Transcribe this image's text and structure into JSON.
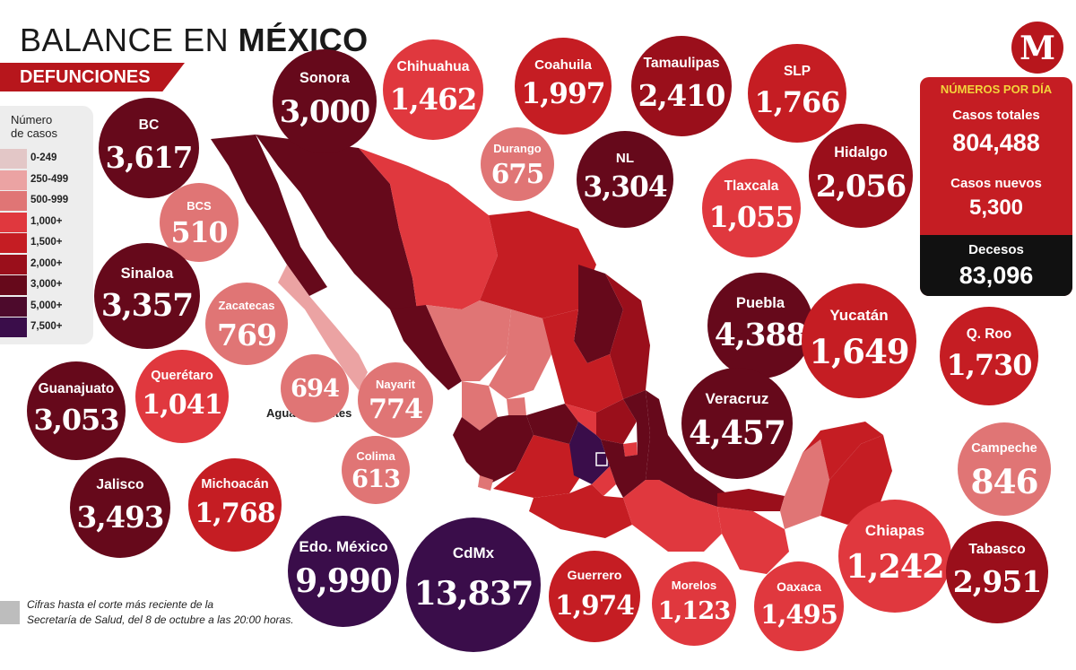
{
  "header": {
    "title_light": "BALANCE EN",
    "title_bold": "MÉXICO",
    "subtitle": "DEFUNCIONES"
  },
  "logo": {
    "letter": "M"
  },
  "legend": {
    "title_line1": "Número",
    "title_line2": "de casos",
    "items": [
      {
        "label": "0-249",
        "color": "#e3c7c7"
      },
      {
        "label": "250-499",
        "color": "#eba3a3"
      },
      {
        "label": "500-999",
        "color": "#e07575"
      },
      {
        "label": "1,000+",
        "color": "#e0383e"
      },
      {
        "label": "1,500+",
        "color": "#c51d23"
      },
      {
        "label": "2,000+",
        "color": "#9a0f1b"
      },
      {
        "label": "3,000+",
        "color": "#66091b"
      },
      {
        "label": "5,000+",
        "color": "#4d0a2c"
      },
      {
        "label": "7,500+",
        "color": "#3a0d4a"
      }
    ]
  },
  "states": [
    {
      "name": "BC",
      "value": "3,617",
      "color": "#66091b"
    },
    {
      "name": "Sonora",
      "value": "3,000",
      "color": "#66091b"
    },
    {
      "name": "Chihuahua",
      "value": "1,462",
      "color": "#e0383e"
    },
    {
      "name": "Coahuila",
      "value": "1,997",
      "color": "#c51d23"
    },
    {
      "name": "Tamaulipas",
      "value": "2,410",
      "color": "#9a0f1b"
    },
    {
      "name": "SLP",
      "value": "1,766",
      "color": "#c51d23"
    },
    {
      "name": "BCS",
      "value": "510",
      "color": "#e07575"
    },
    {
      "name": "Durango",
      "value": "675",
      "color": "#e07575"
    },
    {
      "name": "NL",
      "value": "3,304",
      "color": "#66091b"
    },
    {
      "name": "Tlaxcala",
      "value": "1,055",
      "color": "#e0383e"
    },
    {
      "name": "Hidalgo",
      "value": "2,056",
      "color": "#9a0f1b"
    },
    {
      "name": "Sinaloa",
      "value": "3,357",
      "color": "#66091b"
    },
    {
      "name": "Zacatecas",
      "value": "769",
      "color": "#e07575"
    },
    {
      "name": "Puebla",
      "value": "4,388",
      "color": "#66091b"
    },
    {
      "name": "Yucatán",
      "value": "1,649",
      "color": "#c51d23"
    },
    {
      "name": "Q. Roo",
      "value": "1,730",
      "color": "#c51d23"
    },
    {
      "name": "Guanajuato",
      "value": "3,053",
      "color": "#66091b"
    },
    {
      "name": "Querétaro",
      "value": "1,041",
      "color": "#e0383e"
    },
    {
      "name": "",
      "value": "694",
      "color": "#e07575"
    },
    {
      "name": "Nayarit",
      "value": "774",
      "color": "#e07575"
    },
    {
      "name": "Veracruz",
      "value": "4,457",
      "color": "#66091b"
    },
    {
      "name": "Campeche",
      "value": "846",
      "color": "#e07575"
    },
    {
      "name": "Jalisco",
      "value": "3,493",
      "color": "#66091b"
    },
    {
      "name": "Michoacán",
      "value": "1,768",
      "color": "#c51d23"
    },
    {
      "name": "Colima",
      "value": "613",
      "color": "#e07575"
    },
    {
      "name": "Edo. México",
      "value": "9,990",
      "color": "#3a0d4a"
    },
    {
      "name": "CdMx",
      "value": "13,837",
      "color": "#3a0d4a"
    },
    {
      "name": "Guerrero",
      "value": "1,974",
      "color": "#c51d23"
    },
    {
      "name": "Morelos",
      "value": "1,123",
      "color": "#e0383e"
    },
    {
      "name": "Oaxaca",
      "value": "1,495",
      "color": "#e0383e"
    },
    {
      "name": "Chiapas",
      "value": "1,242",
      "color": "#e0383e"
    },
    {
      "name": "Tabasco",
      "value": "2,951",
      "color": "#9a0f1b"
    }
  ],
  "ags_label": "Aguascalientes",
  "stats": {
    "header": "NÚMEROS POR DÍA",
    "total_label": "Casos totales",
    "total_value": "804,488",
    "new_label": "Casos nuevos",
    "new_value": "5,300",
    "deaths_label": "Decesos",
    "deaths_value": "83,096"
  },
  "note": {
    "line1": "Cifras hasta el corte más reciente de la",
    "line2": "Secretaría de Salud, del 8 de octubre a las 20:00 horas."
  }
}
